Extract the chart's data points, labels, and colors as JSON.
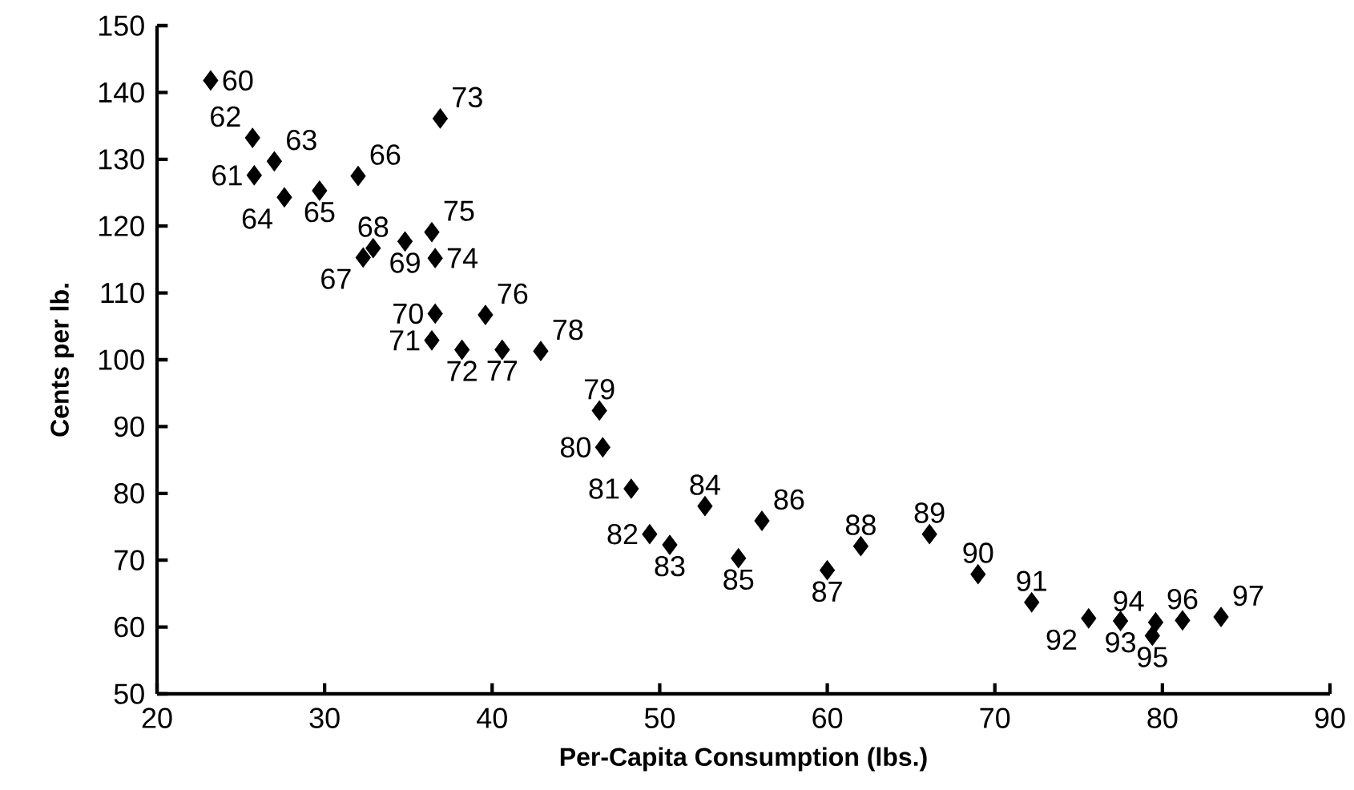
{
  "chart_data": {
    "type": "scatter",
    "xlabel": "Per-Capita Consumption (lbs.)",
    "ylabel": "Cents per lb.",
    "xlim": [
      20,
      90
    ],
    "ylim": [
      50,
      150
    ],
    "xticks": [
      20,
      30,
      40,
      50,
      60,
      70,
      80,
      90
    ],
    "yticks": [
      50,
      60,
      70,
      80,
      90,
      100,
      110,
      120,
      130,
      140,
      150
    ],
    "marker": "diamond",
    "color": "#000000",
    "x": [
      23.2,
      25.8,
      25.7,
      27.0,
      27.6,
      29.7,
      32.0,
      32.3,
      32.9,
      34.8,
      36.6,
      36.4,
      38.2,
      36.9,
      36.6,
      36.4,
      39.6,
      40.6,
      42.9,
      46.4,
      46.6,
      48.3,
      49.4,
      50.6,
      52.7,
      54.7,
      56.1,
      60.0,
      62.0,
      66.1,
      69.0,
      72.2,
      75.6,
      77.5,
      79.6,
      79.4,
      81.2,
      83.5
    ],
    "values": [
      141.8,
      127.6,
      133.2,
      129.7,
      124.3,
      125.3,
      127.5,
      115.3,
      116.7,
      117.7,
      106.9,
      102.9,
      101.5,
      136.1,
      115.2,
      119.1,
      106.7,
      101.5,
      101.3,
      92.4,
      86.9,
      80.7,
      73.9,
      72.3,
      78.1,
      70.3,
      75.9,
      68.5,
      72.1,
      73.9,
      67.9,
      63.7,
      61.3,
      60.9,
      60.7,
      58.7,
      61.0,
      61.5
    ],
    "annotations": [
      {
        "text": "60",
        "x": 23.2,
        "y": 141.8
      },
      {
        "text": "61",
        "x": 25.8,
        "y": 127.6
      },
      {
        "text": "62",
        "x": 25.7,
        "y": 133.2
      },
      {
        "text": "63",
        "x": 27.0,
        "y": 129.7
      },
      {
        "text": "64",
        "x": 27.6,
        "y": 124.3
      },
      {
        "text": "65",
        "x": 29.7,
        "y": 125.3
      },
      {
        "text": "66",
        "x": 32.0,
        "y": 127.5
      },
      {
        "text": "67",
        "x": 32.3,
        "y": 115.3
      },
      {
        "text": "68",
        "x": 32.9,
        "y": 116.7
      },
      {
        "text": "69",
        "x": 34.8,
        "y": 117.7
      },
      {
        "text": "70",
        "x": 36.6,
        "y": 106.9
      },
      {
        "text": "71",
        "x": 36.4,
        "y": 102.9
      },
      {
        "text": "72",
        "x": 38.2,
        "y": 101.5
      },
      {
        "text": "73",
        "x": 36.9,
        "y": 136.1
      },
      {
        "text": "74",
        "x": 36.6,
        "y": 115.2
      },
      {
        "text": "75",
        "x": 36.4,
        "y": 119.1
      },
      {
        "text": "76",
        "x": 39.6,
        "y": 106.7
      },
      {
        "text": "77",
        "x": 40.6,
        "y": 101.5
      },
      {
        "text": "78",
        "x": 42.9,
        "y": 101.3
      },
      {
        "text": "79",
        "x": 46.4,
        "y": 92.4
      },
      {
        "text": "80",
        "x": 46.6,
        "y": 86.9
      },
      {
        "text": "81",
        "x": 48.3,
        "y": 80.7
      },
      {
        "text": "82",
        "x": 49.4,
        "y": 73.9
      },
      {
        "text": "83",
        "x": 50.6,
        "y": 72.3
      },
      {
        "text": "84",
        "x": 52.7,
        "y": 78.1
      },
      {
        "text": "85",
        "x": 54.7,
        "y": 70.3
      },
      {
        "text": "86",
        "x": 56.1,
        "y": 75.9
      },
      {
        "text": "87",
        "x": 60.0,
        "y": 68.5
      },
      {
        "text": "88",
        "x": 62.0,
        "y": 72.1
      },
      {
        "text": "89",
        "x": 66.1,
        "y": 73.9
      },
      {
        "text": "90",
        "x": 69.0,
        "y": 67.9
      },
      {
        "text": "91",
        "x": 72.2,
        "y": 63.7
      },
      {
        "text": "92",
        "x": 75.6,
        "y": 61.3
      },
      {
        "text": "93",
        "x": 77.5,
        "y": 60.9
      },
      {
        "text": "94",
        "x": 79.6,
        "y": 60.7
      },
      {
        "text": "95",
        "x": 79.4,
        "y": 58.7
      },
      {
        "text": "96",
        "x": 81.2,
        "y": 61.0
      },
      {
        "text": "97",
        "x": 83.5,
        "y": 61.5
      }
    ]
  }
}
